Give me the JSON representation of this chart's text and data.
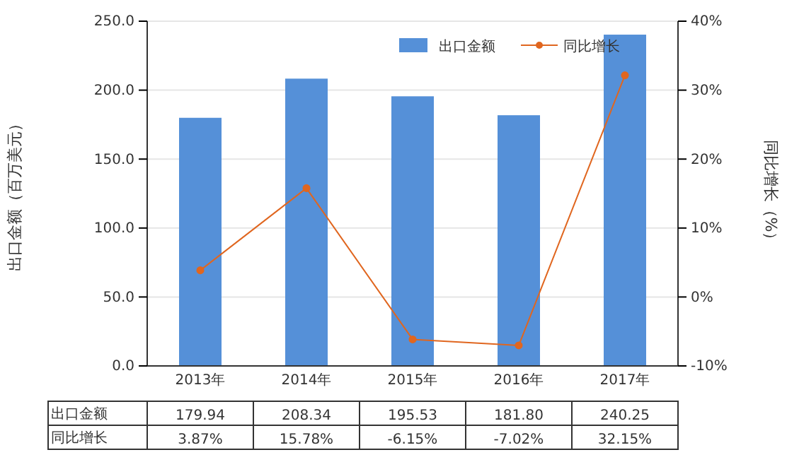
{
  "chart_data": {
    "type": "bar",
    "categories": [
      "2013年",
      "2014年",
      "2015年",
      "2016年",
      "2017年"
    ],
    "ylabel": "出口金额（百万美元）",
    "y2label": "同比增长（%）",
    "ylim": [
      0,
      250
    ],
    "yticks": [
      {
        "value": 0,
        "label": "0.0"
      },
      {
        "value": 50,
        "label": "50.0"
      },
      {
        "value": 100,
        "label": "100.0"
      },
      {
        "value": 150,
        "label": "150.0"
      },
      {
        "value": 200,
        "label": "200.0"
      },
      {
        "value": 250,
        "label": "250.0"
      }
    ],
    "y2lim": [
      -10,
      40
    ],
    "y2ticks": [
      {
        "value": -10,
        "label": "-10%"
      },
      {
        "value": 0,
        "label": "0%"
      },
      {
        "value": 10,
        "label": "10%"
      },
      {
        "value": 20,
        "label": "20%"
      },
      {
        "value": 30,
        "label": "30%"
      },
      {
        "value": 40,
        "label": "40%"
      }
    ],
    "grid": "y",
    "legend": "top right",
    "marker": "circle",
    "series": [
      {
        "name": "出口金额",
        "color": "#5590d8",
        "values": [
          179.94,
          208.34,
          195.53,
          181.8,
          240.25
        ],
        "value_labels": [
          "179.94",
          "208.34",
          "195.53",
          "181.80",
          "240.25"
        ]
      },
      {
        "name": "同比增长",
        "type": "line",
        "axis": "y2",
        "color": "#e0661f",
        "values": [
          3.87,
          15.78,
          -6.15,
          -7.02,
          32.15
        ],
        "value_labels": [
          "3.87%",
          "15.78%",
          "-6.15%",
          "-7.02%",
          "32.15%"
        ]
      }
    ]
  }
}
